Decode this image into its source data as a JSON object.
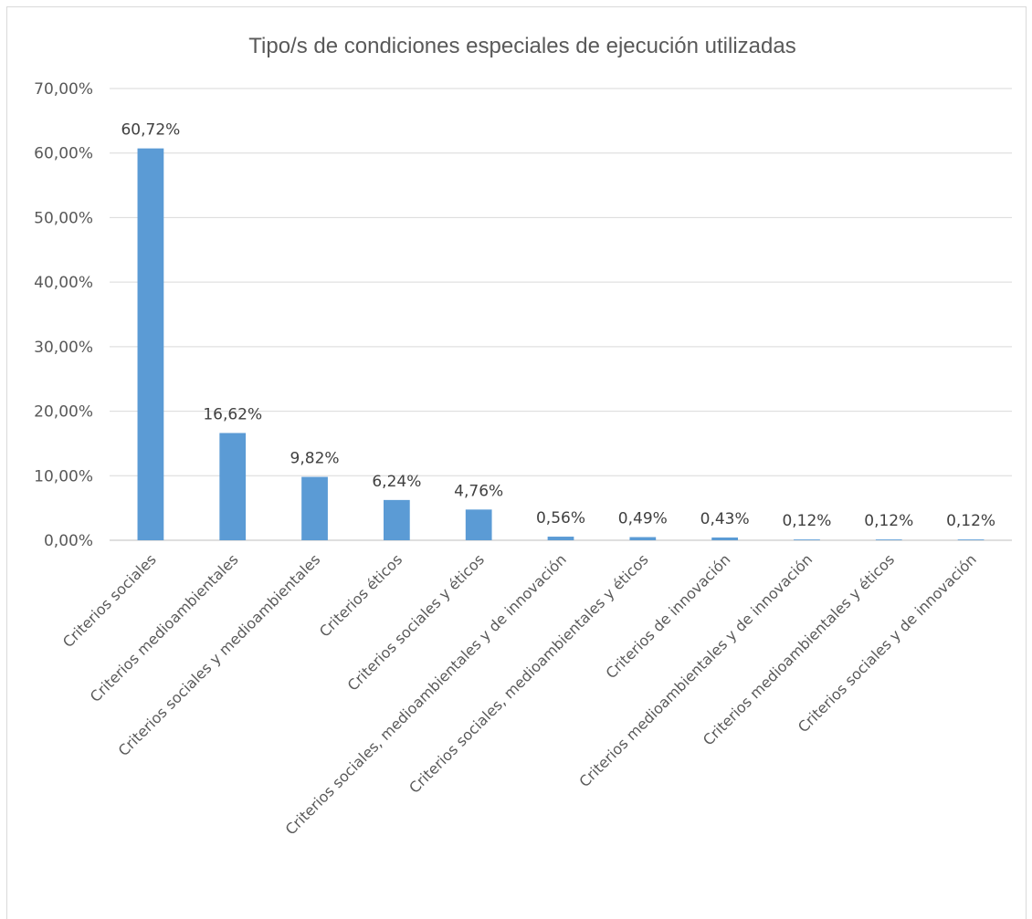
{
  "chart_data": {
    "type": "bar",
    "title": "Tipo/s de condiciones especiales de ejecución utilizadas",
    "xlabel": "",
    "ylabel": "",
    "ylim": [
      0,
      70
    ],
    "yticks": [
      0,
      10,
      20,
      30,
      40,
      50,
      60,
      70
    ],
    "ytick_labels": [
      "0,00%",
      "10,00%",
      "20,00%",
      "30,00%",
      "40,00%",
      "50,00%",
      "60,00%",
      "70,00%"
    ],
    "grid": true,
    "legend": "none",
    "bar_color": "#5b9bd5",
    "categories": [
      "Criterios sociales",
      "Criterios medioambientales",
      "Criterios sociales y medioambientales",
      "Criterios éticos",
      "Criterios sociales y éticos",
      "Criterios  sociales, medioambientales y de innovación",
      "Criterios sociales, medioambientales y éticos",
      "Criterios de innovación",
      "Criterios medioambientales y de innovación",
      "Criterios medioambientales y éticos",
      "Criterios sociales y de innovación"
    ],
    "values": [
      60.72,
      16.62,
      9.82,
      6.24,
      4.76,
      0.56,
      0.49,
      0.43,
      0.12,
      0.12,
      0.12
    ],
    "data_labels": [
      "60,72%",
      "16,62%",
      "9,82%",
      "6,24%",
      "4,76%",
      "0,56%",
      "0,49%",
      "0,43%",
      "0,12%",
      "0,12%",
      "0,12%"
    ]
  }
}
